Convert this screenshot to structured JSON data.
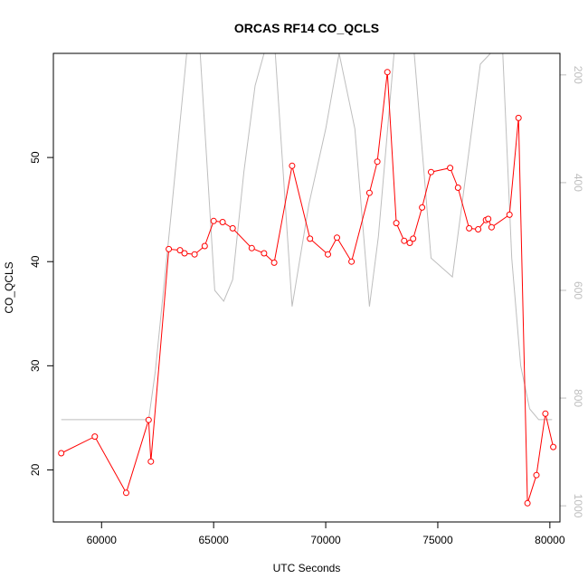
{
  "chart_data": {
    "type": "line",
    "title": "ORCAS RF14 CO_QCLS",
    "xlabel": "UTC Seconds",
    "ylabel": "CO_QCLS",
    "xlim": [
      57850,
      80450
    ],
    "ylim": [
      15,
      60
    ],
    "y2lim": [
      1030,
      160
    ],
    "y2_reversed": true,
    "x_ticks": [
      "60000",
      "65000",
      "70000",
      "75000",
      "80000"
    ],
    "x_tick_values": [
      60000,
      65000,
      70000,
      75000,
      80000
    ],
    "y_ticks": [
      "20",
      "30",
      "40",
      "50"
    ],
    "y_tick_values": [
      20,
      30,
      40,
      50
    ],
    "y2_ticks": [
      "200",
      "400",
      "600",
      "800",
      "1000"
    ],
    "y2_tick_values": [
      200,
      400,
      600,
      800,
      1000
    ],
    "colors": {
      "primary": "#ff0000",
      "secondary": "#bebebe",
      "frame": "#000000"
    },
    "grid": false,
    "series": [
      {
        "axis": "left",
        "style": "line+points",
        "x": [
          58200,
          59700,
          61100,
          62100,
          62200,
          63000,
          63500,
          63700,
          64150,
          64600,
          65000,
          65400,
          65850,
          66700,
          67250,
          67700,
          68500,
          69300,
          70100,
          70500,
          71150,
          71950,
          72300,
          72750,
          73150,
          73500,
          73750,
          73900,
          74300,
          74700,
          75550,
          75900,
          76400,
          76800,
          77150,
          77250,
          77400,
          78200,
          78600,
          79000,
          79400,
          79800,
          80150
        ],
        "values": [
          21.6,
          23.2,
          17.8,
          24.8,
          20.8,
          41.2,
          41.1,
          40.8,
          40.7,
          41.5,
          43.9,
          43.8,
          43.2,
          41.3,
          40.8,
          39.9,
          49.2,
          42.2,
          40.7,
          42.3,
          40.0,
          46.6,
          49.6,
          58.2,
          43.7,
          42.0,
          41.8,
          42.2,
          45.2,
          48.6,
          49.0,
          47.1,
          43.2,
          43.1,
          44.0,
          44.1,
          43.3,
          44.5,
          53.8,
          16.8,
          19.5,
          25.4,
          22.2
        ]
      },
      {
        "axis": "right",
        "style": "line",
        "x": [
          58200,
          62100,
          62400,
          63100,
          63800,
          64400,
          65050,
          65450,
          65850,
          66350,
          66850,
          67250,
          67750,
          68500,
          69250,
          70000,
          70600,
          71300,
          71950,
          72350,
          72700,
          73050,
          73500,
          73950,
          74700,
          75650,
          76300,
          76900,
          77350,
          77900,
          78300,
          78700,
          79100,
          79500,
          80100
        ],
        "values": [
          840,
          840,
          750,
          460,
          100,
          100,
          600,
          620,
          580,
          380,
          220,
          100,
          100,
          630,
          440,
          300,
          100,
          300,
          630,
          500,
          330,
          100,
          100,
          100,
          540,
          575,
          370,
          180,
          100,
          100,
          540,
          740,
          820,
          840,
          840
        ]
      }
    ]
  }
}
